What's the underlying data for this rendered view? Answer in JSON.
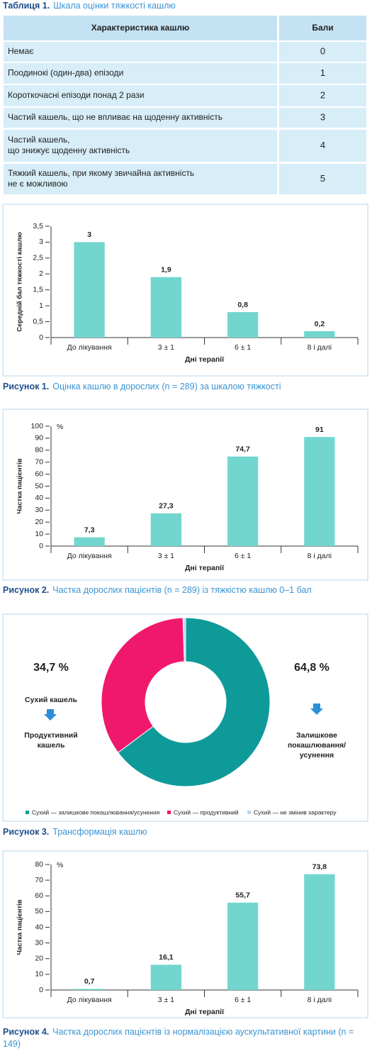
{
  "table_title": {
    "label": "Таблиця 1.",
    "text": "Шкала оцінки тяжкості кашлю"
  },
  "table": {
    "header": [
      "Характеристика кашлю",
      "Бали"
    ],
    "rows": [
      {
        "label": [
          "Немає"
        ],
        "score": "0"
      },
      {
        "label": [
          "Поодинокі (один-два) епізоди"
        ],
        "score": "1"
      },
      {
        "label": [
          "Короткочасні епізоди понад 2 рази"
        ],
        "score": "2"
      },
      {
        "label": [
          "Частий кашель, що не впливає на щоденну активність"
        ],
        "score": "3"
      },
      {
        "label": [
          "Частий кашель,",
          "що знижує щоденну активність"
        ],
        "score": "4"
      },
      {
        "label": [
          "Тяжкий кашель, при якому звичайна активність",
          "не є можливою"
        ],
        "score": "5"
      }
    ]
  },
  "chart_data": [
    {
      "type": "bar",
      "figure_label": "Рисунок 1.",
      "title": "Оцінка кашлю в дорослих (n = 289) за шкалою тяжкості",
      "xlabel": "Дні терапії",
      "ylabel": "Середній бал тяжкості кашлю",
      "categories": [
        "До лікування",
        "3 ± 1",
        "6 ± 1",
        "8 і далі"
      ],
      "values": [
        3,
        1.9,
        0.8,
        0.2
      ],
      "value_labels": [
        "3",
        "1,9",
        "0,8",
        "0,2"
      ],
      "value_label_colors": [
        "#2b3a8f",
        "#2b3a8f",
        "#2b3a8f",
        "#2b3a8f"
      ],
      "color": "#72d6cf",
      "ylim": [
        0,
        3.5
      ],
      "yticks": [
        0,
        {
          "value": 0.5,
          "label": "0,5"
        },
        1,
        {
          "value": 1.5,
          "label": "1,5"
        },
        2,
        {
          "value": 2.5,
          "label": "2,5"
        },
        3,
        {
          "value": 3.5,
          "label": "3,5"
        }
      ]
    },
    {
      "type": "bar",
      "figure_label": "Рисунок 2.",
      "title": "Частка дорослих пацієнтів (n = 289) із тяжкістю кашлю 0–1 бал",
      "xlabel": "Дні терапії",
      "ylabel": "Частка пацієнтів",
      "y_unit": "%",
      "categories": [
        "До лікування",
        "3 ± 1",
        "6 ± 1",
        "8 і далі"
      ],
      "values": [
        7.3,
        27.3,
        74.7,
        91
      ],
      "value_labels": [
        "7,3",
        "27,3",
        "74,7",
        "91"
      ],
      "value_label_colors": [
        "#2b3a8f",
        "#e8312f",
        "#2b3a8f",
        "#2b3a8f"
      ],
      "color": "#72d6cf",
      "ylim": [
        0,
        100
      ],
      "yticks": [
        0,
        10,
        20,
        30,
        40,
        50,
        60,
        70,
        80,
        90,
        100
      ]
    },
    {
      "type": "pie",
      "figure_label": "Рисунок 3.",
      "title": "Трансформація кашлю",
      "categories": [
        "Сухий — залишкове покашлювання/усунення",
        "Сухий — продуктивний",
        "Сухий — не змінив характеру"
      ],
      "values": [
        64.8,
        34.7,
        0.5
      ],
      "value_labels": [
        "64,8 %",
        "34,7 %",
        null
      ],
      "colors": [
        "#0f9a9a",
        "#f0186c",
        "#b9d4ea"
      ],
      "annotations": [
        [
          "Сухий кашель"
        ],
        [
          "Продуктивний",
          "кашель"
        ],
        [
          "Залишкове",
          "покашлювання/",
          "усунення"
        ]
      ]
    },
    {
      "type": "bar",
      "figure_label": "Рисунок 4.",
      "title": "Частка дорослих пацієнтів із нормалізацією аускультативної картини (n = 149)",
      "xlabel": "Дні терапії",
      "ylabel": "Частка пацієнтів",
      "y_unit": "%",
      "categories": [
        "До лікування",
        "3 ± 1",
        "6 ± 1",
        "8 і далі"
      ],
      "values": [
        0.7,
        16.1,
        55.7,
        73.8
      ],
      "value_labels": [
        "0,7",
        "16,1",
        "55,7",
        "73,8"
      ],
      "value_label_colors": [
        "#2b3a8f",
        "#2b3a8f",
        "#2b3a8f",
        "#2b3a8f"
      ],
      "color": "#72d6cf",
      "ylim": [
        0,
        80
      ],
      "yticks": [
        0,
        10,
        20,
        30,
        40,
        50,
        60,
        70,
        80
      ]
    }
  ]
}
